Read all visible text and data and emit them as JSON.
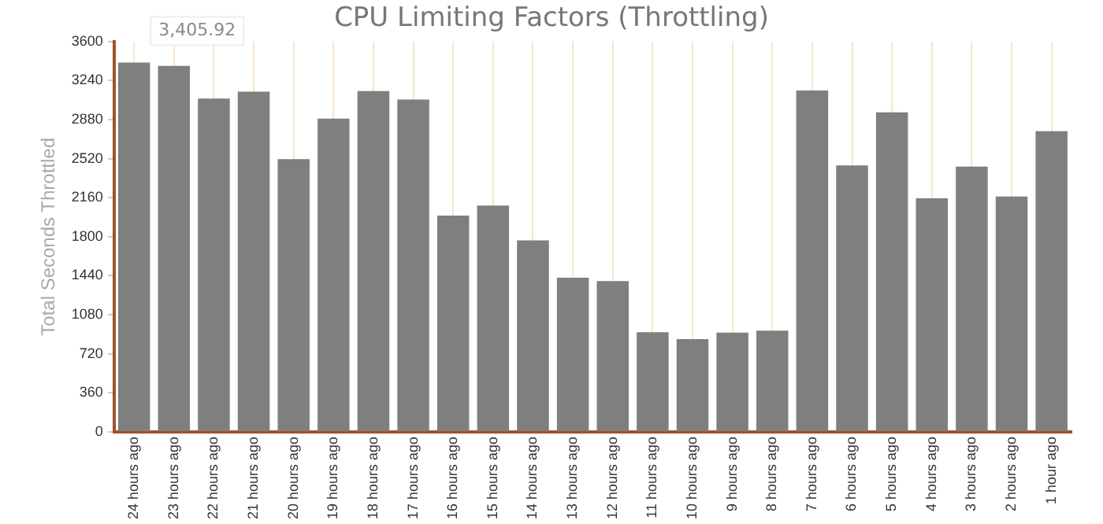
{
  "chart_data": {
    "type": "bar",
    "title": "CPU Limiting Factors (Throttling)",
    "ylabel": "Total Seconds Throttled",
    "categories": [
      "24 hours ago",
      "23 hours ago",
      "22 hours ago",
      "21 hours ago",
      "20 hours ago",
      "19 hours ago",
      "18 hours ago",
      "17 hours ago",
      "16 hours ago",
      "15 hours ago",
      "14 hours ago",
      "13 hours ago",
      "12 hours ago",
      "11 hours ago",
      "10 hours ago",
      "9 hours ago",
      "8 hours ago",
      "7 hours ago",
      "6 hours ago",
      "5 hours ago",
      "4 hours ago",
      "3 hours ago",
      "2 hours ago",
      "1 hour ago"
    ],
    "values": [
      3405.92,
      3376,
      3075,
      3138,
      2515,
      2890,
      3143,
      3065,
      1995,
      2087,
      1766,
      1421,
      1391,
      919,
      856,
      915,
      934,
      3148,
      2457,
      2948,
      2155,
      2447,
      2170,
      2773
    ],
    "color": "#7f7f7f",
    "ylim": [
      0,
      3600
    ],
    "yticks": [
      0,
      360,
      720,
      1080,
      1440,
      1800,
      2160,
      2520,
      2880,
      3240,
      3600
    ],
    "grid": "x",
    "legend": false,
    "annotations": [
      {
        "text": "3,405.92",
        "x": "24 hours ago",
        "y": 3405.92
      }
    ]
  }
}
